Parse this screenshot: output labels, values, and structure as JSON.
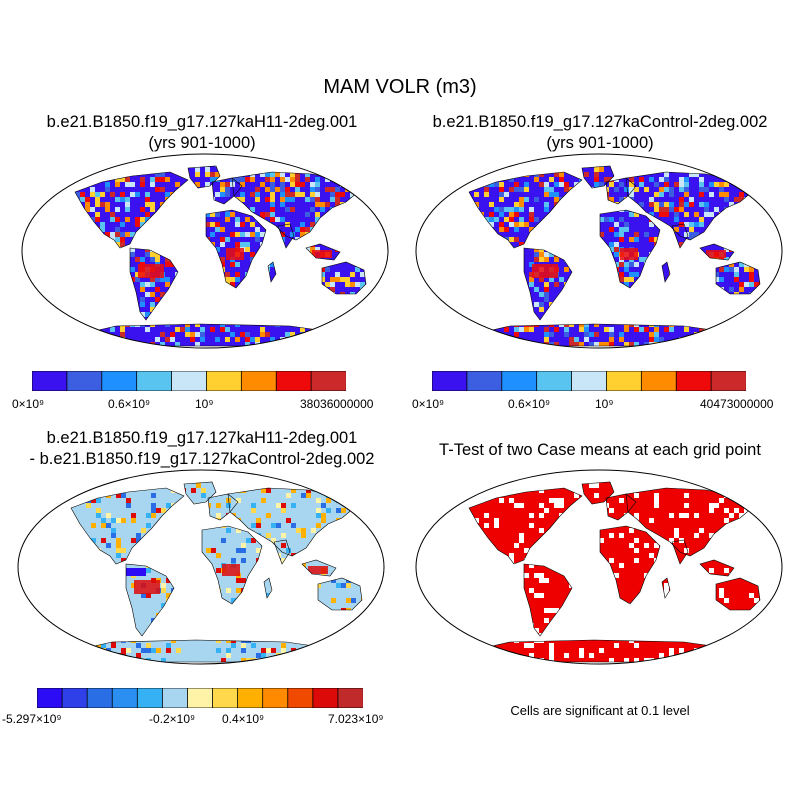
{
  "figure": {
    "title": "MAM VOLR (m3)",
    "colors": {
      "ocean": "#ffffff",
      "land_outline": "#000000",
      "significance": "#ee0000"
    }
  },
  "panels": [
    {
      "id": "case1",
      "title_line1": "b.e21.B1850.f19_g17.127kaH11-2deg.001",
      "title_line2": "(yrs 901-1000)",
      "colorbar": {
        "colors": [
          "#3a12f0",
          "#3b5fe0",
          "#1e90ff",
          "#5ac4f0",
          "#c8e6f8",
          "#ffd030",
          "#ff8c00",
          "#ee0a0a",
          "#cc2a2a"
        ],
        "labels": [
          "0×10⁹",
          "0.6×10⁹",
          "10⁹",
          "38036000000"
        ]
      }
    },
    {
      "id": "case2",
      "title_line1": "b.e21.B1850.f19_g17.127kaControl-2deg.002",
      "title_line2": "(yrs 901-1000)",
      "colorbar": {
        "colors": [
          "#3a12f0",
          "#3b5fe0",
          "#1e90ff",
          "#5ac4f0",
          "#c8e6f8",
          "#ffd030",
          "#ff8c00",
          "#ee0a0a",
          "#cc2a2a"
        ],
        "labels": [
          "0×10⁹",
          "0.6×10⁹",
          "10⁹",
          "40473000000"
        ]
      }
    },
    {
      "id": "difference",
      "title_line1": "b.e21.B1850.f19_g17.127kaH11-2deg.001",
      "title_line2": "- b.e21.B1850.f19_g17.127kaControl-2deg.002",
      "colorbar": {
        "colors": [
          "#2c0cf5",
          "#3040e8",
          "#2a6ee6",
          "#2a8ff0",
          "#36b2f4",
          "#a8d6f0",
          "#fff3a8",
          "#ffd84c",
          "#ffb000",
          "#ff8a00",
          "#f04a00",
          "#dd0a0a",
          "#c02a2a"
        ],
        "labels": [
          "-5.297×10⁹",
          "-0.2×10⁹",
          "0.4×10⁹",
          "7.023×10⁹"
        ]
      }
    },
    {
      "id": "ttest",
      "title_line1": "T-Test of two Case means at each grid point",
      "note": "Cells are significant at 0.1 level"
    }
  ]
}
